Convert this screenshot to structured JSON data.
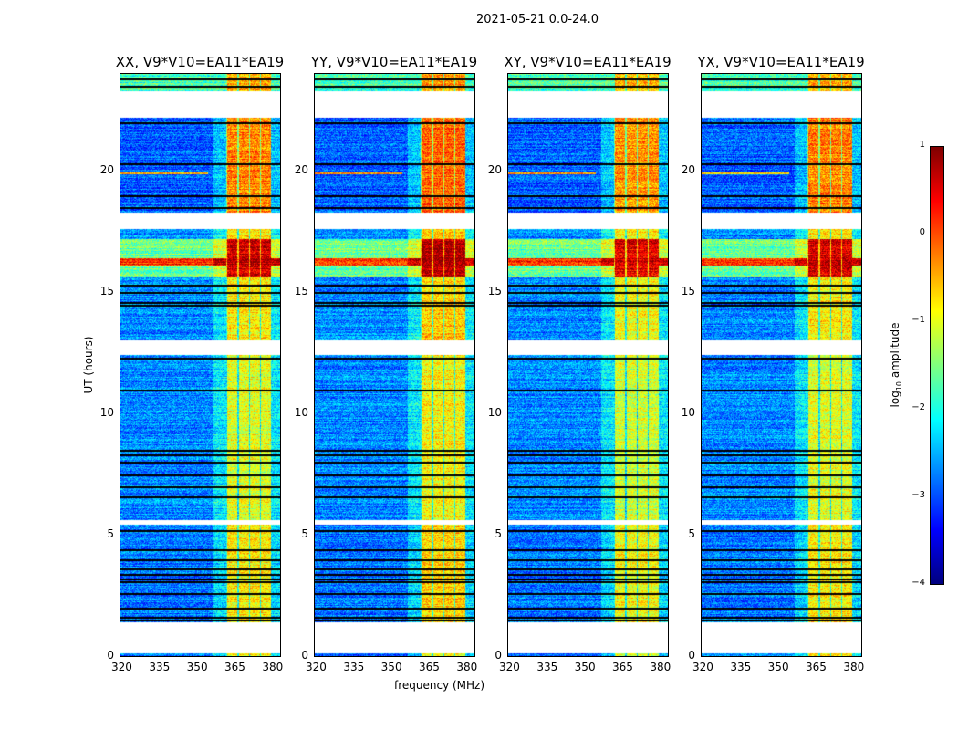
{
  "chart_data": {
    "type": "heatmap",
    "title": "2021-05-21 0.0-24.0",
    "xlabel": "frequency (MHz)",
    "ylabel": "UT (hours)",
    "xlim": [
      320,
      383.5
    ],
    "ylim": [
      0,
      24
    ],
    "xticks": [
      "320",
      "335",
      "350",
      "365",
      "380"
    ],
    "xtick_values": [
      320,
      335,
      350,
      365,
      380
    ],
    "yticks": [
      "0",
      "5",
      "10",
      "15",
      "20"
    ],
    "ytick_values": [
      0,
      5,
      10,
      15,
      20
    ],
    "panels": [
      {
        "title": "XX, V9*V10=EA11*EA19",
        "band_gain": 0
      },
      {
        "title": "YY, V9*V10=EA11*EA19",
        "band_gain": 0.15
      },
      {
        "title": "XY, V9*V10=EA11*EA19",
        "band_gain": -0.1
      },
      {
        "title": "YX, V9*V10=EA11*EA19",
        "band_gain": 0
      }
    ],
    "colorbar": {
      "label": "log10 amplitude",
      "label_main": "log",
      "label_sub": "10",
      "label_rest": " amplitude",
      "range": [
        -4,
        1
      ],
      "ticks": [
        "1",
        "0",
        "−1",
        "−2",
        "−3",
        "−4"
      ],
      "tick_values": [
        1,
        0,
        -1,
        -2,
        -3,
        -4
      ],
      "colormap": "jet"
    },
    "segments": [
      {
        "t0": 0.0,
        "t1": 0.12,
        "bg": -2.8,
        "band": -0.9
      },
      {
        "t0": 1.4,
        "t1": 5.4,
        "bg": -2.8,
        "band": -0.8
      },
      {
        "t0": 5.6,
        "t1": 12.4,
        "bg": -2.7,
        "band": -1.0
      },
      {
        "t0": 13.0,
        "t1": 17.6,
        "bg": -2.7,
        "band": -0.8
      },
      {
        "t0": 18.3,
        "t1": 22.2,
        "bg": -2.9,
        "band": -0.25
      },
      {
        "t0": 23.3,
        "t1": 24.0,
        "bg": -1.8,
        "band": -0.5
      }
    ],
    "rfi_band_mhz": [
      362,
      380
    ],
    "strong_rows": [
      {
        "t0": 15.6,
        "t1": 17.2,
        "bg": -1.6,
        "band": 0.6
      },
      {
        "t0": 16.1,
        "t1": 16.4,
        "bg": 0.2,
        "band": 0.8
      },
      {
        "t0": 19.85,
        "t1": 19.95,
        "bg": -0.5,
        "band": -0.2,
        "fmax": 355
      }
    ],
    "flagged_rows_hours": [
      1.5,
      1.6,
      2.0,
      2.6,
      3.1,
      3.2,
      3.4,
      3.6,
      4.0,
      4.4,
      5.2,
      6.6,
      7.0,
      7.5,
      8.0,
      8.3,
      8.5,
      11.0,
      12.3,
      14.5,
      14.6,
      15.0,
      15.3,
      17.7,
      17.8,
      18.5,
      19.0,
      20.3,
      22.0,
      23.5,
      23.8
    ]
  }
}
